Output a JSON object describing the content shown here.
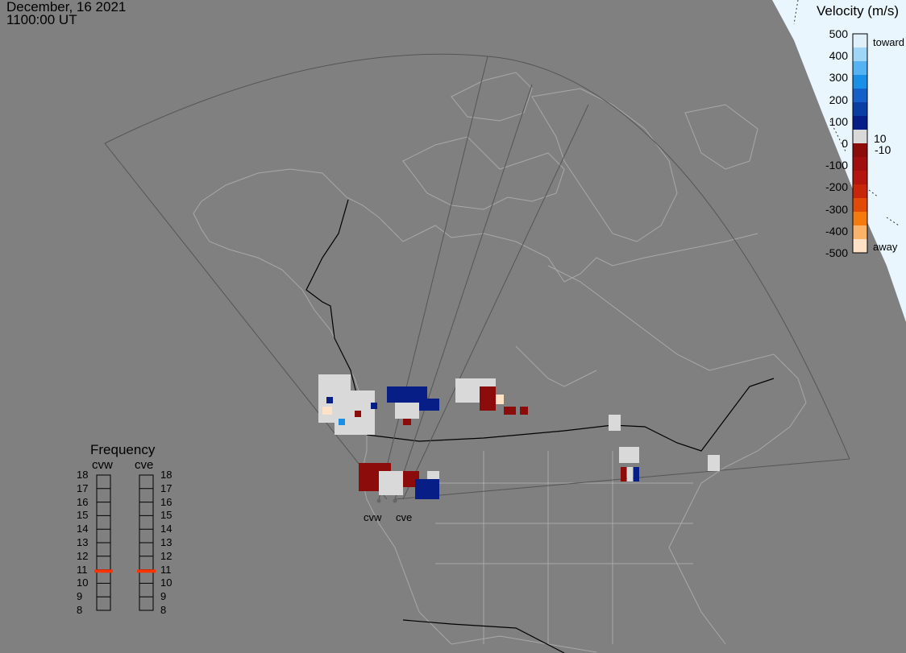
{
  "header": {
    "date": "December, 16 2021",
    "time": "1100:00 UT"
  },
  "colorbar": {
    "title": "Velocity (m/s)",
    "ticks": [
      "500",
      "400",
      "300",
      "200",
      "100",
      "0",
      "-100",
      "-200",
      "-300",
      "-400",
      "-500"
    ],
    "small_ticks": [
      "10",
      "-10"
    ],
    "toward_label": "toward",
    "away_label": "away",
    "colors": [
      "#dff0fb",
      "#9fd6f7",
      "#55b3f4",
      "#1a8fe6",
      "#1560c8",
      "#0b3ea2",
      "#061e86",
      "#d9d9d9",
      "#8c0c0c",
      "#a01010",
      "#b3150f",
      "#c8260a",
      "#e04c08",
      "#f47b10",
      "#f9b36a",
      "#fde2c8"
    ]
  },
  "frequency": {
    "title": "Frequency",
    "radars": [
      "cvw",
      "cve"
    ],
    "scale": [
      "18",
      "17",
      "16",
      "15",
      "14",
      "13",
      "12",
      "11",
      "10",
      "9",
      "8"
    ],
    "range_mhz": [
      8,
      18
    ],
    "current_mhz": [
      10.9,
      10.9
    ],
    "marker_color": "#ff3300"
  },
  "sites": [
    "cvw",
    "cve"
  ],
  "map_colors": {
    "background": "#808080",
    "coastline": "#a8a8a8",
    "fov_outline": "#555555",
    "border": "#000000",
    "daylight": "#eaf6fd"
  }
}
